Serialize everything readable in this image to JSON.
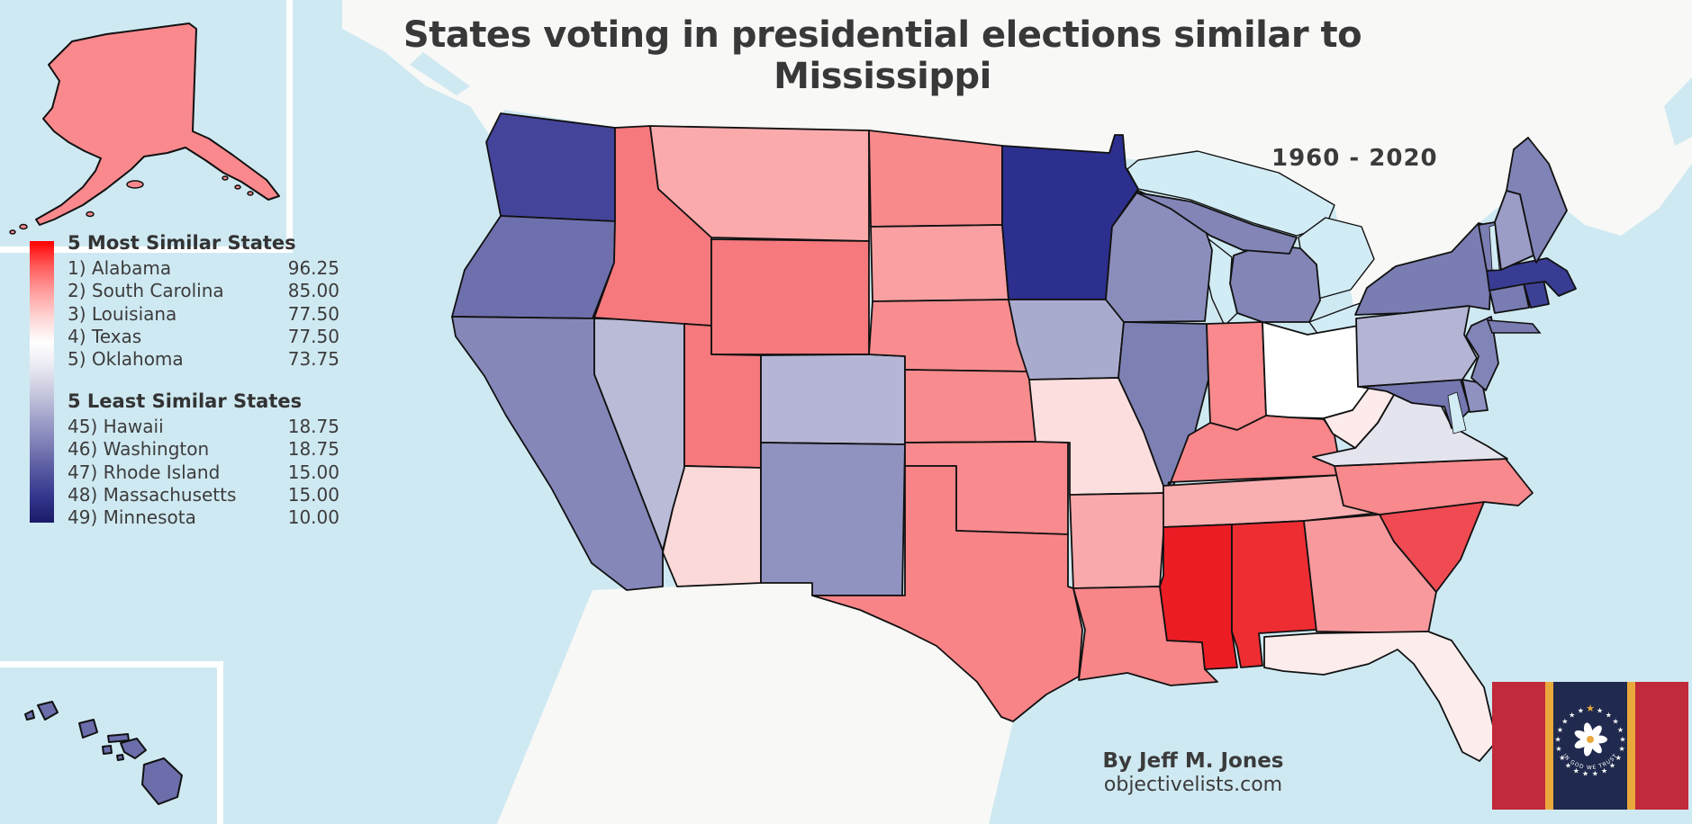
{
  "title": "States voting in presidential elections similar to Mississippi",
  "period": "1960 - 2020",
  "attribution": {
    "author": "By Jeff M. Jones",
    "website": "objectivelists.com"
  },
  "legend": {
    "most_title": "5 Most Similar States",
    "least_title": "5 Least Similar States",
    "most": [
      {
        "rank": "1)",
        "state": "Alabama",
        "value": "96.25"
      },
      {
        "rank": "2)",
        "state": "South Carolina",
        "value": "85.00"
      },
      {
        "rank": "3)",
        "state": "Louisiana",
        "value": "77.50"
      },
      {
        "rank": "4)",
        "state": "Texas",
        "value": "77.50"
      },
      {
        "rank": "5)",
        "state": "Oklahoma",
        "value": "73.75"
      }
    ],
    "least": [
      {
        "rank": "45)",
        "state": "Hawaii",
        "value": "18.75"
      },
      {
        "rank": "46)",
        "state": "Washington",
        "value": "18.75"
      },
      {
        "rank": "47)",
        "state": "Rhode Island",
        "value": "15.00"
      },
      {
        "rank": "48)",
        "state": "Massachusetts",
        "value": "15.00"
      },
      {
        "rank": "49)",
        "state": "Minnesota",
        "value": "10.00"
      }
    ],
    "gradient_stops": [
      "#ff0000",
      "#ff5c5c",
      "#ff9e9e",
      "#ffd4d4",
      "#ffffff",
      "#e8e8f1",
      "#c3c4db",
      "#9d9ec9",
      "#7a7cb4",
      "#54569f",
      "#33358d",
      "#1a1b66"
    ]
  },
  "map": {
    "ocean_color": "#cfe9f2",
    "lake_color": "#d2ecf6",
    "foreign_land_color": "#f8f8f6",
    "border_color": "#111111",
    "states": [
      {
        "id": "WA",
        "name": "Washington",
        "color": "#44449b"
      },
      {
        "id": "OR",
        "name": "Oregon",
        "color": "#6e70ad"
      },
      {
        "id": "CA",
        "name": "California",
        "color": "#8487b8"
      },
      {
        "id": "NV",
        "name": "Nevada",
        "color": "#babbd7"
      },
      {
        "id": "ID",
        "name": "Idaho",
        "color": "#f5797d"
      },
      {
        "id": "MT",
        "name": "Montana",
        "color": "#fbaaac"
      },
      {
        "id": "WY",
        "name": "Wyoming",
        "color": "#f5797d"
      },
      {
        "id": "UT",
        "name": "Utah",
        "color": "#f5797d"
      },
      {
        "id": "CO",
        "name": "Colorado",
        "color": "#b5b6d5"
      },
      {
        "id": "AZ",
        "name": "Arizona",
        "color": "#fbd9d9"
      },
      {
        "id": "NM",
        "name": "New Mexico",
        "color": "#9092c0"
      },
      {
        "id": "ND",
        "name": "North Dakota",
        "color": "#f88a8c"
      },
      {
        "id": "SD",
        "name": "South Dakota",
        "color": "#faa0a2"
      },
      {
        "id": "NE",
        "name": "Nebraska",
        "color": "#f88d8f"
      },
      {
        "id": "KS",
        "name": "Kansas",
        "color": "#f88b8d"
      },
      {
        "id": "OK",
        "name": "Oklahoma",
        "color": "#f98b8e"
      },
      {
        "id": "TX",
        "name": "Texas",
        "color": "#f98487"
      },
      {
        "id": "MN",
        "name": "Minnesota",
        "color": "#2c2f8d"
      },
      {
        "id": "IA",
        "name": "Iowa",
        "color": "#a9abce"
      },
      {
        "id": "MO",
        "name": "Missouri",
        "color": "#fcdede"
      },
      {
        "id": "AR",
        "name": "Arkansas",
        "color": "#f9a9ab"
      },
      {
        "id": "LA",
        "name": "Louisiana",
        "color": "#f88588"
      },
      {
        "id": "WI",
        "name": "Wisconsin",
        "color": "#8b8ebc"
      },
      {
        "id": "IL",
        "name": "Illinois",
        "color": "#7d80b3"
      },
      {
        "id": "MI",
        "name": "Michigan",
        "color": "#8285b6"
      },
      {
        "id": "IN",
        "name": "Indiana",
        "color": "#f9898c"
      },
      {
        "id": "OH",
        "name": "Ohio",
        "color": "#ffffff"
      },
      {
        "id": "KY",
        "name": "Kentucky",
        "color": "#f8868a"
      },
      {
        "id": "TN",
        "name": "Tennessee",
        "color": "#f9aeb0"
      },
      {
        "id": "MS",
        "name": "Mississippi",
        "color": "#ec1c24"
      },
      {
        "id": "AL",
        "name": "Alabama",
        "color": "#ee2d33"
      },
      {
        "id": "GA",
        "name": "Georgia",
        "color": "#f89a9d"
      },
      {
        "id": "FL",
        "name": "Florida",
        "color": "#fdecec"
      },
      {
        "id": "SC",
        "name": "South Carolina",
        "color": "#f04a52"
      },
      {
        "id": "NC",
        "name": "North Carolina",
        "color": "#f8898c"
      },
      {
        "id": "VA",
        "name": "Virginia",
        "color": "#e4e4ef"
      },
      {
        "id": "WV",
        "name": "West Virginia",
        "color": "#fdeaea"
      },
      {
        "id": "MD",
        "name": "Maryland",
        "color": "#7477b0"
      },
      {
        "id": "DE",
        "name": "Delaware",
        "color": "#8f92c1"
      },
      {
        "id": "PA",
        "name": "Pennsylvania",
        "color": "#b4b5d4"
      },
      {
        "id": "NJ",
        "name": "New Jersey",
        "color": "#8184b6"
      },
      {
        "id": "NY",
        "name": "New York",
        "color": "#7a7db2"
      },
      {
        "id": "CT",
        "name": "Connecticut",
        "color": "#797cb2"
      },
      {
        "id": "RI",
        "name": "Rhode Island",
        "color": "#3d4196"
      },
      {
        "id": "MA",
        "name": "Massachusetts",
        "color": "#383c92"
      },
      {
        "id": "VT",
        "name": "Vermont",
        "color": "#7b7eb3"
      },
      {
        "id": "NH",
        "name": "New Hampshire",
        "color": "#9b9dc7"
      },
      {
        "id": "ME",
        "name": "Maine",
        "color": "#8083b5"
      },
      {
        "id": "AK",
        "name": "Alaska",
        "color": "#f9898d"
      },
      {
        "id": "HI",
        "name": "Hawaii",
        "color": "#6b6eaa"
      }
    ]
  },
  "flag": {
    "name": "Mississippi state flag",
    "motto": "IN GOD WE TRUST",
    "red": "#c02a3a",
    "gold": "#e9a83b",
    "navy": "#202a4e",
    "star_color": "#ffffff"
  }
}
